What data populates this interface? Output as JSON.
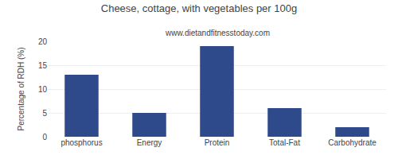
{
  "chart_data": {
    "type": "bar",
    "title": "Cheese, cottage, with vegetables per 100g",
    "subtitle": "www.dietandfitnesstoday.com",
    "categories": [
      "phosphorus",
      "Energy",
      "Protein",
      "Total-Fat",
      "Carbohydrate"
    ],
    "values": [
      13,
      5,
      19,
      6,
      2
    ],
    "color": "#2e4a8a",
    "ylabel": "Percentage of RDH (%)",
    "ylim": [
      0,
      20
    ],
    "yticks": [
      0,
      5,
      10,
      15,
      20
    ],
    "grid": true
  }
}
